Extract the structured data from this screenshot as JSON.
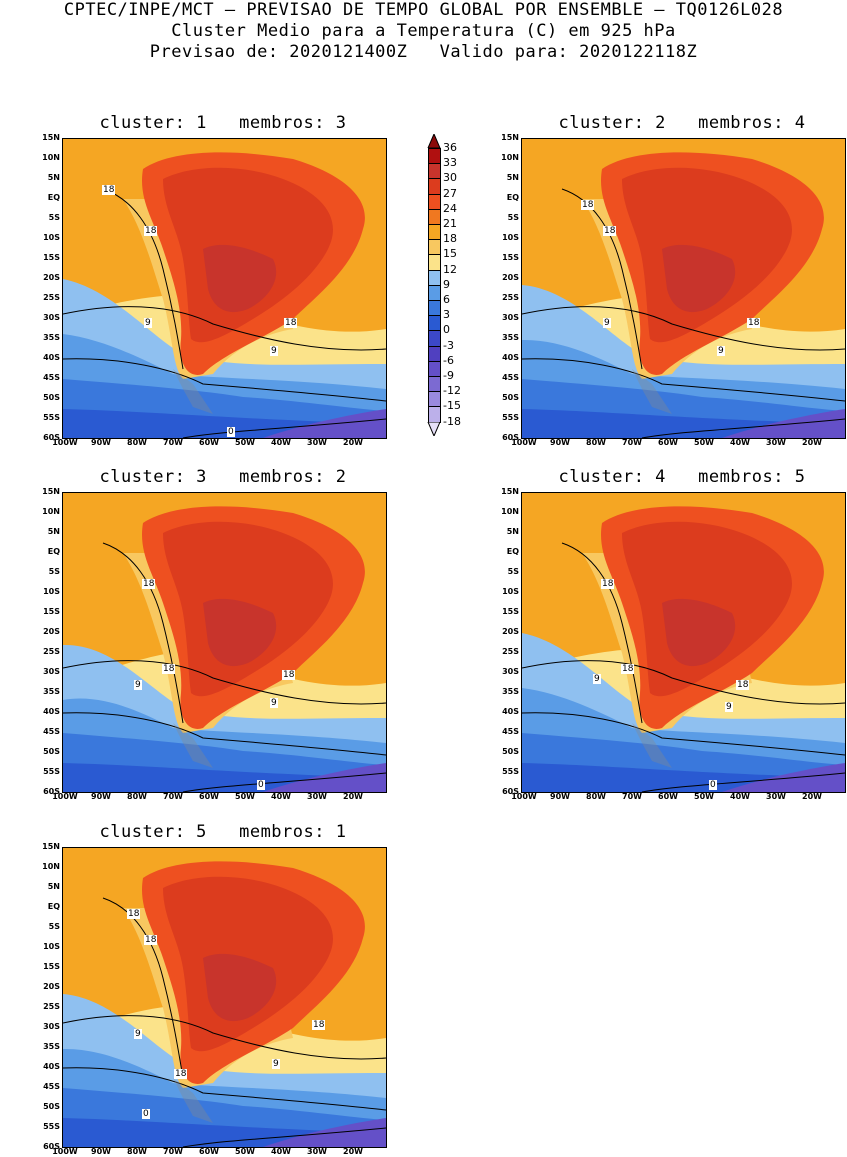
{
  "header": {
    "line1": "CPTEC/INPE/MCT — PREVISAO DE TEMPO GLOBAL POR ENSEMBLE — TQ0126L028",
    "line2": "Cluster Medio para a Temperatura (C) em 925 hPa",
    "line3": "Previsao de: 2020121400Z   Valido para: 2020122118Z"
  },
  "panels": [
    {
      "title": "cluster: 1   membros: 3",
      "labels": [
        "18",
        "18",
        "9",
        "18",
        "9",
        "0"
      ]
    },
    {
      "title": "cluster: 2   membros: 4",
      "labels": [
        "18",
        "18",
        "9",
        "18",
        "9"
      ]
    },
    {
      "title": "cluster: 3   membros: 2",
      "labels": [
        "18",
        "18",
        "9",
        "18",
        "9",
        "0"
      ]
    },
    {
      "title": "cluster: 4   membros: 5",
      "labels": [
        "18",
        "18",
        "9",
        "18",
        "9",
        "0"
      ]
    },
    {
      "title": "cluster: 5   membros: 1",
      "labels": [
        "18",
        "18",
        "9",
        "18",
        "18",
        "9",
        "0"
      ]
    }
  ],
  "axes": {
    "lat_ticks": [
      "15N",
      "10N",
      "5N",
      "EQ",
      "5S",
      "10S",
      "15S",
      "20S",
      "25S",
      "30S",
      "35S",
      "40S",
      "45S",
      "50S",
      "55S",
      "60S"
    ],
    "lon_ticks": [
      "100W",
      "90W",
      "80W",
      "70W",
      "60W",
      "50W",
      "40W",
      "30W",
      "20W"
    ]
  },
  "colorbar": {
    "labels": [
      "36",
      "33",
      "30",
      "27",
      "24",
      "21",
      "18",
      "15",
      "12",
      "9",
      "6",
      "3",
      "0",
      "-3",
      "-6",
      "-9",
      "-12",
      "-15",
      "-18"
    ],
    "colors": [
      "#b01010",
      "#c8342c",
      "#dc3c1e",
      "#ee5020",
      "#f07820",
      "#f5a623",
      "#f8c860",
      "#fbe38a",
      "#8fc0f0",
      "#5a9ce6",
      "#3a78dc",
      "#2a5ad2",
      "#3c48c8",
      "#5040c0",
      "#6450c8",
      "#7c6ad2",
      "#9a8ade",
      "#bcb0ea",
      "#dcd6f4"
    ]
  }
}
